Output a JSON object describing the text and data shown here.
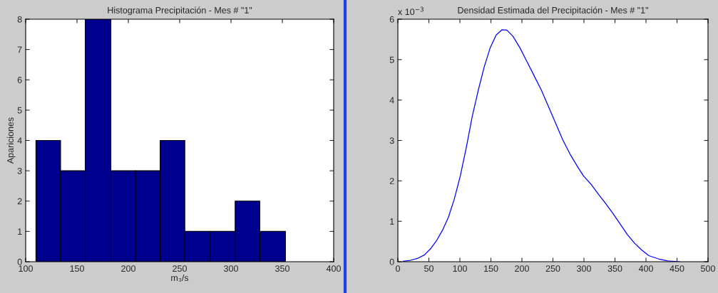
{
  "chart_data": [
    {
      "type": "histogram",
      "title": "Histograma Precipitación - Mes # \"1\"",
      "xlabel": "m₃/s",
      "ylabel": "Apariciones",
      "color": "#00008f",
      "bins": [
        110,
        134,
        158,
        183,
        207,
        231,
        255,
        280,
        304,
        328,
        353
      ],
      "values": [
        4,
        3,
        8,
        3,
        3,
        4,
        1,
        1,
        2,
        1
      ],
      "xlim": [
        100,
        400
      ],
      "xticks": [
        100,
        150,
        200,
        250,
        300,
        350,
        400
      ],
      "ylim": [
        0,
        8
      ],
      "yticks": [
        0,
        1,
        2,
        3,
        4,
        5,
        6,
        7,
        8
      ],
      "grid": false
    },
    {
      "type": "line",
      "title": "Densidad Estimada del Precipitación - Mes # \"1\"",
      "annotations": [
        "x 10$^{−3}$"
      ],
      "series": [
        {
          "color": "#0000ff",
          "x": [
            8.5,
            20,
            31.5,
            43,
            52.7,
            62.3,
            72,
            81.5,
            91,
            100.8,
            110.4,
            120,
            129.6,
            139.2,
            148.8,
            158.5,
            168,
            175.8,
            185.4,
            196.9,
            208.5,
            220,
            231.5,
            243,
            254.6,
            266,
            277.7,
            289,
            298.8,
            312.3,
            323.8,
            335.4,
            346.9,
            358.5,
            370,
            381.5,
            393,
            404.6,
            420,
            435,
            454.6
          ],
          "values": [
            0.01,
            0.035,
            0.08,
            0.17,
            0.32,
            0.52,
            0.78,
            1.1,
            1.55,
            2.13,
            2.83,
            3.6,
            4.24,
            4.82,
            5.29,
            5.61,
            5.74,
            5.73,
            5.58,
            5.29,
            4.94,
            4.59,
            4.24,
            3.83,
            3.42,
            3.01,
            2.66,
            2.37,
            2.13,
            1.9,
            1.66,
            1.43,
            1.19,
            0.93,
            0.67,
            0.46,
            0.29,
            0.15,
            0.07,
            0.02,
            0.0
          ]
        }
      ],
      "xlim": [
        0,
        500
      ],
      "xticks": [
        0,
        50,
        100,
        150,
        200,
        250,
        300,
        350,
        400,
        450,
        500
      ],
      "ylim": [
        0,
        6
      ],
      "yticks": [
        0,
        1,
        2,
        3,
        4,
        5,
        6
      ],
      "grid": false
    }
  ]
}
